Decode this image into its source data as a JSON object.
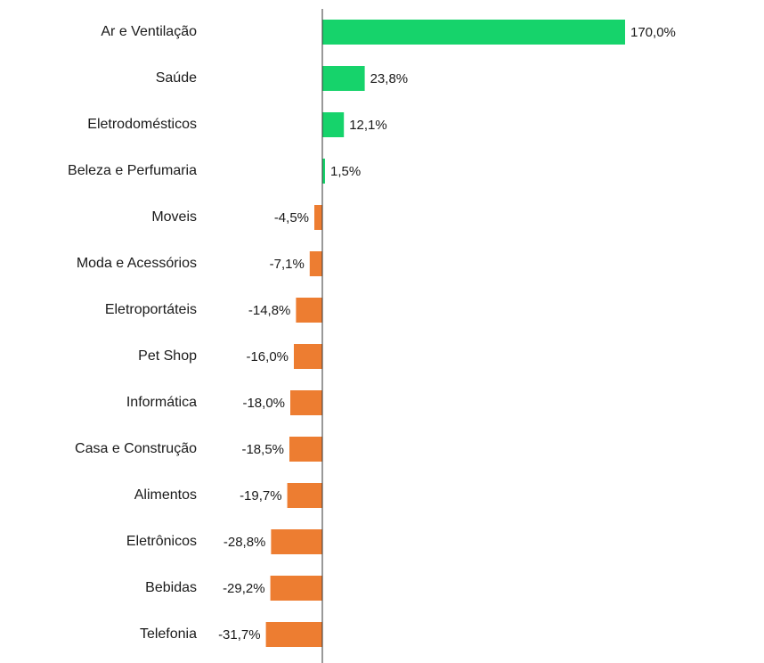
{
  "chart_data": {
    "type": "bar",
    "orientation": "horizontal",
    "categories": [
      "Ar e Ventilação",
      "Saúde",
      "Eletrodomésticos",
      "Beleza e Perfumaria",
      "Moveis",
      "Moda e Acessórios",
      "Eletroportáteis",
      "Pet Shop",
      "Informática",
      "Casa e Construção",
      "Alimentos",
      "Eletrônicos",
      "Bebidas",
      "Telefonia"
    ],
    "values": [
      170.0,
      23.8,
      12.1,
      1.5,
      -4.5,
      -7.1,
      -14.8,
      -16.0,
      -18.0,
      -18.5,
      -19.7,
      -28.8,
      -29.2,
      -31.7
    ],
    "labels": [
      "170,0%",
      "23,8%",
      "12,1%",
      "1,5%",
      "-4,5%",
      "-7,1%",
      "-14,8%",
      "-16,0%",
      "-18,0%",
      "-18,5%",
      "-19,7%",
      "-28,8%",
      "-29,2%",
      "-31,7%"
    ],
    "colors": {
      "positive": "#16d36b",
      "negative": "#ed7d31",
      "axis": "#333333"
    },
    "title": "",
    "xlabel": "",
    "ylabel": "",
    "grid": false,
    "legend": "none"
  }
}
